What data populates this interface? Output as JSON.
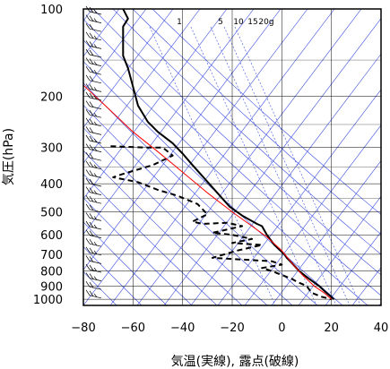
{
  "chart_data": {
    "type": "line",
    "title": "",
    "xlabel": "気温(実線), 露点(破線)",
    "ylabel": "気圧(hPa)",
    "xlim": [
      -80,
      40
    ],
    "ylim": [
      1050,
      100
    ],
    "y_scale": "log",
    "x_ticks": [
      -80,
      -60,
      -40,
      -20,
      0,
      20,
      40
    ],
    "x_tick_labels": [
      "−80",
      "−60",
      "−40",
      "−20",
      "0",
      "20",
      "40"
    ],
    "y_ticks": [
      100,
      200,
      300,
      400,
      500,
      600,
      700,
      800,
      900,
      1000
    ],
    "grid": true,
    "mixing_ratio_labels": [
      "1",
      "5",
      "10",
      "15",
      "20g"
    ],
    "series": [
      {
        "role": "temperature",
        "style": "solid",
        "color": "#000000",
        "points": [
          [
            -64,
            100
          ],
          [
            -62,
            108
          ],
          [
            -64,
            115
          ],
          [
            -64,
            130
          ],
          [
            -64,
            145
          ],
          [
            -62,
            160
          ],
          [
            -60,
            185
          ],
          [
            -58,
            215
          ],
          [
            -54,
            245
          ],
          [
            -50,
            265
          ],
          [
            -44,
            290
          ],
          [
            -40,
            315
          ],
          [
            -36,
            345
          ],
          [
            -31,
            385
          ],
          [
            -26,
            430
          ],
          [
            -21,
            480
          ],
          [
            -16,
            515
          ],
          [
            -10,
            550
          ],
          [
            -8,
            560
          ],
          [
            -6,
            600
          ],
          [
            -3,
            650
          ],
          [
            1,
            700
          ],
          [
            2,
            720
          ],
          [
            4,
            750
          ],
          [
            7,
            800
          ],
          [
            11,
            850
          ],
          [
            15,
            900
          ],
          [
            18,
            950
          ],
          [
            21,
            1000
          ]
        ]
      },
      {
        "role": "dewpoint",
        "style": "dashed",
        "color": "#000000",
        "points": [
          [
            -69,
            297
          ],
          [
            -55,
            300
          ],
          [
            -48,
            300
          ],
          [
            -44,
            320
          ],
          [
            -52,
            345
          ],
          [
            -64,
            370
          ],
          [
            -68,
            380
          ],
          [
            -58,
            395
          ],
          [
            -50,
            420
          ],
          [
            -42,
            440
          ],
          [
            -34,
            470
          ],
          [
            -30,
            510
          ],
          [
            -36,
            540
          ],
          [
            -32,
            550
          ],
          [
            -22,
            545
          ],
          [
            -16,
            560
          ],
          [
            -24,
            580
          ],
          [
            -28,
            590
          ],
          [
            -20,
            600
          ],
          [
            -12,
            620
          ],
          [
            -20,
            640
          ],
          [
            -8,
            650
          ],
          [
            -18,
            680
          ],
          [
            -28,
            720
          ],
          [
            -16,
            730
          ],
          [
            -4,
            740
          ],
          [
            0,
            760
          ],
          [
            -8,
            780
          ],
          [
            -4,
            800
          ],
          [
            4,
            850
          ],
          [
            6,
            870
          ],
          [
            10,
            900
          ],
          [
            12,
            950
          ],
          [
            16,
            980
          ],
          [
            20,
            1000
          ]
        ]
      },
      {
        "role": "parcel",
        "style": "solid",
        "color": "#ff0000",
        "points": [
          [
            -80,
            183
          ],
          [
            -70,
            220
          ],
          [
            -60,
            265
          ],
          [
            -50,
            310
          ],
          [
            -40,
            365
          ],
          [
            -30,
            430
          ],
          [
            -20,
            500
          ],
          [
            -12,
            560
          ],
          [
            -6,
            610
          ],
          [
            0,
            680
          ],
          [
            4,
            750
          ],
          [
            8,
            820
          ],
          [
            13,
            900
          ],
          [
            17,
            950
          ],
          [
            20,
            1000
          ]
        ]
      }
    ]
  }
}
